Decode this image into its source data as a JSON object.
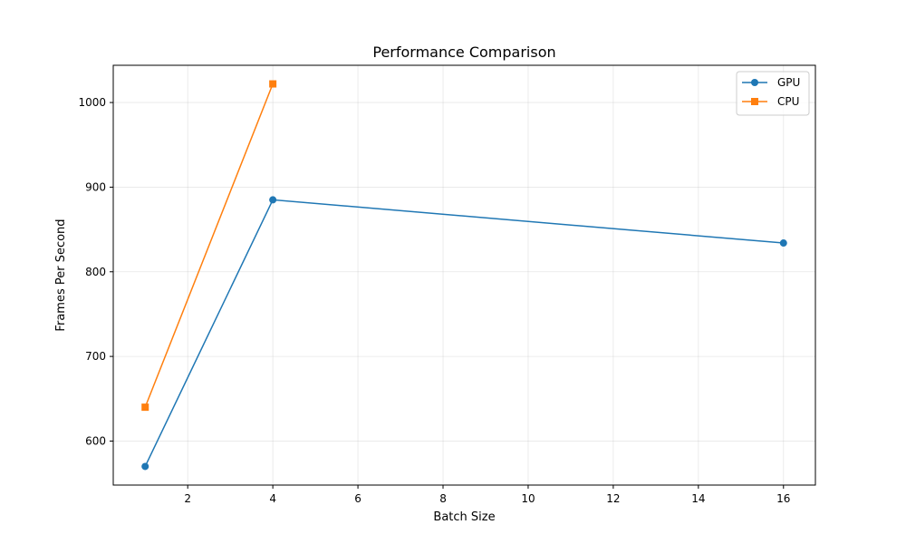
{
  "chart_data": {
    "type": "line",
    "title": "Performance Comparison",
    "xlabel": "Batch Size",
    "ylabel": "Frames Per Second",
    "xlim": [
      0.25,
      16.75
    ],
    "ylim": [
      548,
      1044
    ],
    "xticks": [
      2,
      4,
      6,
      8,
      10,
      12,
      14,
      16
    ],
    "yticks": [
      600,
      700,
      800,
      900,
      1000
    ],
    "grid": true,
    "legend_position": "top-right",
    "series": [
      {
        "name": "GPU",
        "color": "#1f77b4",
        "marker": "circle",
        "x": [
          1,
          4,
          16
        ],
        "y": [
          570,
          885,
          834
        ]
      },
      {
        "name": "CPU",
        "color": "#ff7f0e",
        "marker": "square",
        "x": [
          1,
          4
        ],
        "y": [
          640,
          1022
        ]
      }
    ]
  }
}
